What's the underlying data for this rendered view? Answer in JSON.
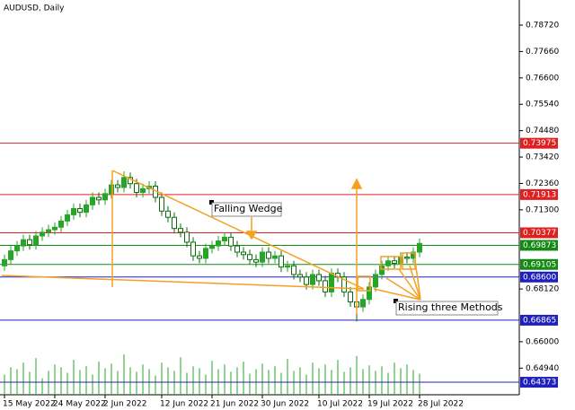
{
  "chart_data": {
    "type": "candlestick",
    "title": "AUDUSD, Daily",
    "categories": [
      "15 May 2022",
      null,
      null,
      null,
      null,
      null,
      null,
      null,
      "24 May 2022",
      null,
      null,
      null,
      null,
      null,
      null,
      null,
      "2 Jun 2022",
      null,
      null,
      null,
      null,
      null,
      null,
      null,
      null,
      "12 Jun 2022",
      null,
      null,
      null,
      null,
      null,
      null,
      null,
      "21 Jun 2022",
      null,
      null,
      null,
      null,
      null,
      null,
      null,
      "30 Jun 2022",
      null,
      null,
      null,
      null,
      null,
      null,
      null,
      null,
      "10 Jul 2022",
      null,
      null,
      null,
      null,
      null,
      null,
      null,
      "19 Jul 2022",
      null,
      null,
      null,
      null,
      null,
      null,
      null,
      "28 Jul 2022"
    ],
    "open": [
      0.6905,
      0.693,
      0.6965,
      0.6985,
      0.701,
      0.699,
      0.7025,
      0.704,
      0.705,
      0.706,
      0.7085,
      0.711,
      0.7135,
      0.712,
      0.715,
      0.718,
      0.717,
      0.7195,
      0.723,
      0.722,
      0.726,
      0.7235,
      0.72,
      0.7215,
      0.7225,
      0.718,
      0.7125,
      0.71,
      0.7055,
      0.704,
      0.7,
      0.6945,
      0.6935,
      0.6975,
      0.6985,
      0.7005,
      0.702,
      0.6985,
      0.696,
      0.695,
      0.693,
      0.692,
      0.696,
      0.6935,
      0.6945,
      0.69,
      0.6905,
      0.687,
      0.686,
      0.683,
      0.687,
      0.6845,
      0.68,
      0.6875,
      0.686,
      0.68,
      0.676,
      0.674,
      0.677,
      0.682,
      0.687,
      0.6905,
      0.6925,
      0.6915,
      0.694,
      0.6935,
      0.696
    ],
    "high": [
      0.695,
      0.6985,
      0.7005,
      0.703,
      0.703,
      0.7045,
      0.706,
      0.707,
      0.708,
      0.7105,
      0.713,
      0.7155,
      0.7155,
      0.717,
      0.72,
      0.72,
      0.7215,
      0.725,
      0.725,
      0.7285,
      0.728,
      0.7255,
      0.7235,
      0.7245,
      0.7245,
      0.72,
      0.7145,
      0.712,
      0.7075,
      0.706,
      0.702,
      0.6965,
      0.6995,
      0.7005,
      0.7025,
      0.704,
      0.704,
      0.7005,
      0.698,
      0.697,
      0.695,
      0.698,
      0.698,
      0.6965,
      0.6965,
      0.6925,
      0.6925,
      0.689,
      0.688,
      0.689,
      0.689,
      0.6865,
      0.6895,
      0.6895,
      0.688,
      0.682,
      0.678,
      0.679,
      0.684,
      0.689,
      0.6925,
      0.6945,
      0.6945,
      0.696,
      0.696,
      0.698,
      0.7015
    ],
    "low": [
      0.6885,
      0.691,
      0.6945,
      0.6965,
      0.697,
      0.697,
      0.7005,
      0.702,
      0.703,
      0.704,
      0.7065,
      0.709,
      0.71,
      0.71,
      0.713,
      0.715,
      0.715,
      0.7175,
      0.72,
      0.72,
      0.7215,
      0.718,
      0.718,
      0.7195,
      0.716,
      0.7105,
      0.708,
      0.7035,
      0.702,
      0.698,
      0.6925,
      0.6915,
      0.6915,
      0.6955,
      0.6965,
      0.6985,
      0.6965,
      0.694,
      0.693,
      0.691,
      0.69,
      0.69,
      0.6915,
      0.6915,
      0.688,
      0.688,
      0.685,
      0.684,
      0.681,
      0.681,
      0.6825,
      0.678,
      0.678,
      0.684,
      0.678,
      0.674,
      0.6681,
      0.672,
      0.675,
      0.68,
      0.685,
      0.6885,
      0.6895,
      0.6895,
      0.6915,
      0.6915,
      0.694
    ],
    "close": [
      0.693,
      0.6965,
      0.6985,
      0.701,
      0.699,
      0.7025,
      0.704,
      0.705,
      0.706,
      0.7085,
      0.711,
      0.7135,
      0.712,
      0.715,
      0.718,
      0.717,
      0.7195,
      0.723,
      0.722,
      0.726,
      0.7235,
      0.72,
      0.7215,
      0.7225,
      0.718,
      0.7125,
      0.71,
      0.7055,
      0.704,
      0.7,
      0.6945,
      0.6935,
      0.6975,
      0.6985,
      0.7005,
      0.702,
      0.6985,
      0.696,
      0.695,
      0.693,
      0.692,
      0.696,
      0.6935,
      0.6945,
      0.69,
      0.6905,
      0.687,
      0.686,
      0.683,
      0.687,
      0.6845,
      0.68,
      0.6875,
      0.686,
      0.68,
      0.676,
      0.674,
      0.677,
      0.682,
      0.687,
      0.6905,
      0.6925,
      0.6915,
      0.694,
      0.6935,
      0.696,
      0.6995
    ],
    "volume": [
      22,
      30,
      28,
      35,
      25,
      40,
      18,
      26,
      33,
      30,
      24,
      38,
      27,
      31,
      22,
      36,
      29,
      34,
      26,
      44,
      30,
      25,
      33,
      28,
      21,
      35,
      30,
      26,
      41,
      24,
      31,
      29,
      22,
      37,
      28,
      33,
      25,
      30,
      36,
      23,
      28,
      34,
      27,
      31,
      24,
      39,
      26,
      30,
      22,
      35,
      29,
      33,
      27,
      38,
      25,
      30,
      42,
      28,
      32,
      26,
      31,
      24,
      35,
      29,
      33,
      27,
      23
    ],
    "bull_color": "#26a626",
    "bear_color": "#0b6b0b",
    "ylim": [
      0.6387,
      0.7973
    ],
    "yticks": [
      {
        "value": 0.7872,
        "label": "0.78720"
      },
      {
        "value": 0.7766,
        "label": "0.77660"
      },
      {
        "value": 0.766,
        "label": "0.76600"
      },
      {
        "value": 0.7554,
        "label": "0.75540"
      },
      {
        "value": 0.7448,
        "label": "0.74480"
      },
      {
        "value": 0.7342,
        "label": "0.73420"
      },
      {
        "value": 0.7236,
        "label": "0.72360"
      },
      {
        "value": 0.713,
        "label": "0.71300"
      },
      {
        "value": 0.6812,
        "label": "0.68120"
      },
      {
        "value": 0.66,
        "label": "0.66000"
      },
      {
        "value": 0.6494,
        "label": "0.64940"
      }
    ],
    "levels": [
      {
        "value": 0.73975,
        "label": "0.73975",
        "color": "#e02020"
      },
      {
        "value": 0.71913,
        "label": "0.71913",
        "color": "#e02020"
      },
      {
        "value": 0.70377,
        "label": "0.70377",
        "color": "#e02020"
      },
      {
        "value": 0.69873,
        "label": "0.69873",
        "color": "#138a13"
      },
      {
        "value": 0.69105,
        "label": "0.69105",
        "color": "#138a13"
      },
      {
        "value": 0.686,
        "label": "0.68600",
        "color": "#2020c0"
      },
      {
        "value": 0.66865,
        "label": "0.66865",
        "color": "#2020c0"
      },
      {
        "value": 0.64373,
        "label": "0.64373",
        "color": "#2020c0"
      }
    ],
    "annotations": [
      "Falling Wedge",
      "Rising three Methods"
    ],
    "grid": false
  }
}
